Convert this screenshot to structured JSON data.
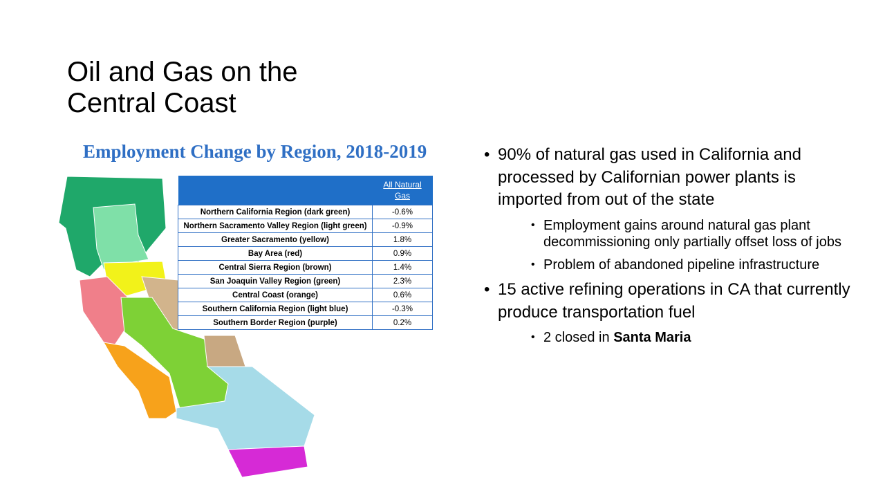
{
  "title": [
    "Oil and Gas on the",
    "Central Coast"
  ],
  "figure": {
    "title": "Employment Change by Region, 2018-2019",
    "table": {
      "header": "All Natural Gas",
      "rows": [
        [
          "Northern California Region (dark green)",
          "-0.6%"
        ],
        [
          "Northern Sacramento Valley Region (light green)",
          "-0.9%"
        ],
        [
          "Greater Sacramento (yellow)",
          "1.8%"
        ],
        [
          "Bay Area (red)",
          "0.9%"
        ],
        [
          "Central Sierra Region (brown)",
          "1.4%"
        ],
        [
          "San Joaquin Valley Region (green)",
          "2.3%"
        ],
        [
          "Central Coast (orange)",
          "0.6%"
        ],
        [
          "Southern California Region (light blue)",
          "-0.3%"
        ],
        [
          "Southern Border Region (purple)",
          "0.2%"
        ]
      ]
    }
  },
  "bullets": [
    {
      "text": "90% of natural gas used in California and processed by Californian power plants is imported from out of the state",
      "sub": [
        {
          "text": "Employment gains around natural gas plant decommissioning only partially offset loss of jobs"
        },
        {
          "text": "Problem of abandoned pipeline infrastructure"
        }
      ]
    },
    {
      "text": "15 active refining operations in CA that currently produce transportation fuel",
      "sub": [
        {
          "text": "2 closed in",
          "bold": "Santa Maria"
        }
      ]
    }
  ]
}
